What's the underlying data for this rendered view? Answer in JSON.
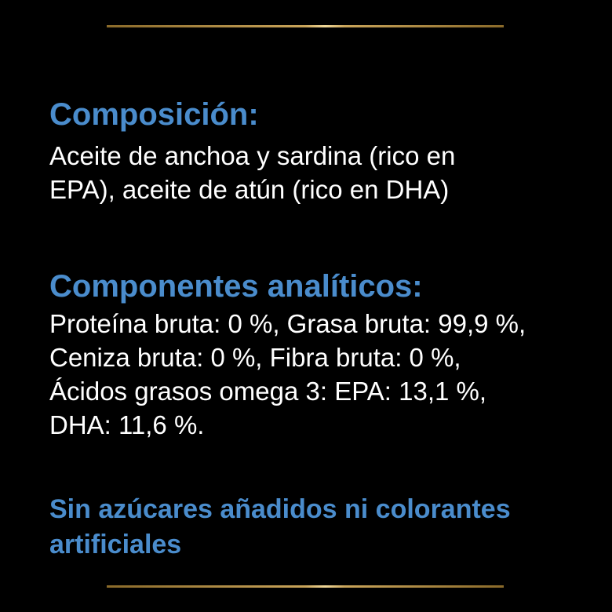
{
  "colors": {
    "heading": "#4a8ccc",
    "body": "#ffffff",
    "background": "#000000",
    "divider": "#c9a45a"
  },
  "composicion": {
    "heading": "Composición:",
    "lines": [
      "Aceite de anchoa y sardina (rico en",
      "EPA), aceite de atún (rico en DHA)"
    ]
  },
  "componentes": {
    "heading": "Componentes analíticos:",
    "lines": [
      "Proteína bruta: 0 %, Grasa bruta: 99,9 %,",
      "Ceniza bruta: 0 %, Fibra bruta: 0 %,",
      "Ácidos grasos omega 3: EPA: 13,1 %,",
      "DHA: 11,6 %."
    ]
  },
  "note": {
    "lines": [
      "Sin azúcares añadidos ni colorantes",
      "artificiales"
    ]
  }
}
